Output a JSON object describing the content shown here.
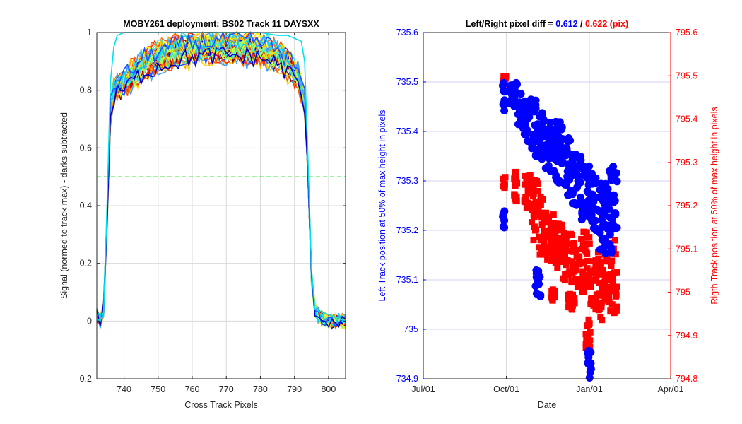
{
  "chart_data": [
    {
      "type": "line",
      "title": "MOBY261 deployment: BS02  Track 11 DAYSXX",
      "xlabel": "Cross Track Pixels",
      "ylabel": "Signal (normed to track max) - darks subtracted",
      "xlim": [
        732,
        805
      ],
      "ylim": [
        -0.2,
        1
      ],
      "xticks": [
        740,
        750,
        760,
        770,
        780,
        790,
        800
      ],
      "xtick_labels": [
        "740",
        "750",
        "760",
        "770",
        "780",
        "790",
        "800"
      ],
      "yticks": [
        -0.2,
        0,
        0.2,
        0.4,
        0.6,
        0.8,
        1
      ],
      "ytick_labels": [
        "-0.2",
        "0",
        "0.2",
        "0.4",
        "0.6",
        "0.8",
        "1"
      ],
      "grid": true,
      "reference_line": {
        "y": 0.5,
        "color": "#00dd00",
        "style": "dashed"
      },
      "profile_shape": {
        "x": [
          732,
          733,
          734,
          735,
          736,
          737,
          738,
          740,
          743,
          746,
          750,
          755,
          760,
          765,
          770,
          775,
          780,
          783,
          786,
          789,
          791,
          793,
          794,
          795,
          796,
          797,
          798,
          800,
          803,
          805
        ],
        "y": [
          0.02,
          0.0,
          0.04,
          0.35,
          0.72,
          0.78,
          0.8,
          0.82,
          0.85,
          0.88,
          0.9,
          0.92,
          0.93,
          0.935,
          0.94,
          0.935,
          0.93,
          0.92,
          0.9,
          0.87,
          0.84,
          0.75,
          0.5,
          0.15,
          0.04,
          0.02,
          0.01,
          0.0,
          0.0,
          0.0
        ]
      },
      "series_colors": [
        "#800000",
        "#b00000",
        "#e00000",
        "#ff3000",
        "#ff6000",
        "#ff8c00",
        "#ffb000",
        "#ffd400",
        "#fff000",
        "#d8ff28",
        "#a8ff58",
        "#80ff80",
        "#40e8c0",
        "#00d8ff",
        "#40a0ff",
        "#2050ff",
        "#0000cc"
      ],
      "outlier_series": {
        "color": "#00e0f0",
        "x": [
          732,
          733,
          734,
          735,
          736,
          737,
          738,
          740,
          745,
          750,
          760,
          770,
          780,
          785,
          788,
          790,
          792,
          793,
          794,
          795,
          796,
          805
        ],
        "y": [
          0.01,
          0.0,
          0.03,
          0.4,
          0.83,
          0.95,
          0.99,
          1.0,
          1.0,
          1.0,
          1.0,
          1.0,
          1.0,
          0.99,
          0.99,
          0.98,
          0.97,
          0.9,
          0.55,
          0.18,
          0.04,
          0.0
        ]
      }
    },
    {
      "type": "scatter",
      "title_prefix": "Left/Right pixel diff = ",
      "title_left_value": "0.612",
      "title_sep": " / ",
      "title_right_value": "0.622 (pix)",
      "xlabel": "Date",
      "xlim": [
        "Jul/01",
        "Apr/01"
      ],
      "xticks": [
        "Jul/01",
        "Oct/01",
        "Jan/01",
        "Apr/01"
      ],
      "grid": true,
      "left_axis": {
        "label": "Left Track position at 50% of max height in pixels",
        "color": "#0000ff",
        "ylim": [
          734.9,
          735.6
        ],
        "yticks": [
          734.9,
          735,
          735.1,
          735.2,
          735.3,
          735.4,
          735.5,
          735.6
        ],
        "ytick_labels": [
          "734.9",
          "735",
          "735.1",
          "735.2",
          "735.3",
          "735.4",
          "735.5",
          "735.6"
        ]
      },
      "right_axis": {
        "label": "Rigth Track position at 50% of max height in pixels",
        "color": "#ff0000",
        "ylim": [
          794.8,
          795.6
        ],
        "yticks": [
          794.8,
          794.9,
          795,
          795.1,
          795.2,
          795.3,
          795.4,
          795.5,
          795.6
        ],
        "ytick_labels": [
          "794.8",
          "794.9",
          "795",
          "795.1",
          "795.2",
          "795.3",
          "795.4",
          "795.5",
          "795.6"
        ]
      },
      "series": [
        {
          "name": "Left",
          "axis": "left",
          "marker": "circle",
          "color": "#0000ff",
          "clusters": [
            {
              "x": [
                88,
                90
              ],
              "y": [
                735.42,
                735.5
              ]
            },
            {
              "x": [
                88,
                90
              ],
              "y": [
                735.2,
                735.24
              ]
            },
            {
              "x": [
                95,
                104
              ],
              "y": [
                735.45,
                735.5
              ]
            },
            {
              "x": [
                105,
                115
              ],
              "y": [
                735.39,
                735.48
              ]
            },
            {
              "x": [
                115,
                125
              ],
              "y": [
                735.35,
                735.47
              ]
            },
            {
              "x": [
                124,
                130
              ],
              "y": [
                735.06,
                735.12
              ]
            },
            {
              "x": [
                125,
                135
              ],
              "y": [
                735.34,
                735.44
              ]
            },
            {
              "x": [
                135,
                145
              ],
              "y": [
                735.32,
                735.42
              ]
            },
            {
              "x": [
                145,
                155
              ],
              "y": [
                735.29,
                735.42
              ]
            },
            {
              "x": [
                155,
                165
              ],
              "y": [
                735.27,
                735.39
              ]
            },
            {
              "x": [
                165,
                175
              ],
              "y": [
                735.24,
                735.36
              ]
            },
            {
              "x": [
                175,
                185
              ],
              "y": [
                735.22,
                735.33
              ]
            },
            {
              "x": [
                182,
                186
              ],
              "y": [
                734.9,
                734.96
              ]
            },
            {
              "x": [
                185,
                195
              ],
              "y": [
                735.2,
                735.32
              ]
            },
            {
              "x": [
                195,
                205
              ],
              "y": [
                735.14,
                735.3
              ]
            },
            {
              "x": [
                205,
                215
              ],
              "y": [
                735.15,
                735.33
              ]
            }
          ]
        },
        {
          "name": "Right",
          "axis": "right",
          "marker": "square",
          "color": "#ff0000",
          "clusters": [
            {
              "x": [
                88,
                91
              ],
              "y": [
                795.24,
                795.27
              ]
            },
            {
              "x": [
                88,
                92
              ],
              "y": [
                795.48,
                795.5
              ]
            },
            {
              "x": [
                100,
                104
              ],
              "y": [
                795.2,
                795.28
              ]
            },
            {
              "x": [
                112,
                120
              ],
              "y": [
                795.19,
                795.27
              ]
            },
            {
              "x": [
                120,
                128
              ],
              "y": [
                795.12,
                795.26
              ]
            },
            {
              "x": [
                128,
                137
              ],
              "y": [
                795.08,
                795.22
              ]
            },
            {
              "x": [
                137,
                145
              ],
              "y": [
                795.07,
                795.18
              ]
            },
            {
              "x": [
                140,
                146
              ],
              "y": [
                794.98,
                795.01
              ]
            },
            {
              "x": [
                145,
                155
              ],
              "y": [
                795.04,
                795.16
              ]
            },
            {
              "x": [
                155,
                165
              ],
              "y": [
                795.02,
                795.14
              ]
            },
            {
              "x": [
                160,
                168
              ],
              "y": [
                794.96,
                795.0
              ]
            },
            {
              "x": [
                165,
                175
              ],
              "y": [
                795.0,
                795.12
              ]
            },
            {
              "x": [
                175,
                185
              ],
              "y": [
                795.0,
                795.14
              ]
            },
            {
              "x": [
                180,
                185
              ],
              "y": [
                794.87,
                794.94
              ]
            },
            {
              "x": [
                185,
                195
              ],
              "y": [
                794.95,
                795.1
              ]
            },
            {
              "x": [
                195,
                205
              ],
              "y": [
                794.93,
                795.1
              ]
            },
            {
              "x": [
                205,
                215
              ],
              "y": [
                794.95,
                795.12
              ]
            }
          ]
        }
      ]
    }
  ]
}
